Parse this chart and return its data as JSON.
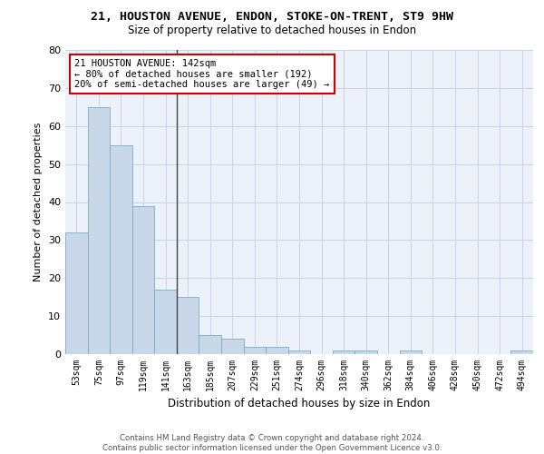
{
  "title1": "21, HOUSTON AVENUE, ENDON, STOKE-ON-TRENT, ST9 9HW",
  "title2": "Size of property relative to detached houses in Endon",
  "xlabel": "Distribution of detached houses by size in Endon",
  "ylabel": "Number of detached properties",
  "bar_labels": [
    "53sqm",
    "75sqm",
    "97sqm",
    "119sqm",
    "141sqm",
    "163sqm",
    "185sqm",
    "207sqm",
    "229sqm",
    "251sqm",
    "274sqm",
    "296sqm",
    "318sqm",
    "340sqm",
    "362sqm",
    "384sqm",
    "406sqm",
    "428sqm",
    "450sqm",
    "472sqm",
    "494sqm"
  ],
  "bar_values": [
    32,
    65,
    55,
    39,
    17,
    15,
    5,
    4,
    2,
    2,
    1,
    0,
    1,
    1,
    0,
    1,
    0,
    0,
    0,
    0,
    1
  ],
  "bar_color": "#c8d8e8",
  "bar_edge_color": "#7aaac8",
  "annotation_text": "21 HOUSTON AVENUE: 142sqm\n← 80% of detached houses are smaller (192)\n20% of semi-detached houses are larger (49) →",
  "annotation_box_color": "#ffffff",
  "annotation_edge_color": "#cc0000",
  "vline_color": "#444444",
  "grid_color": "#c8d4e8",
  "background_color": "#edf1f9",
  "ylim": [
    0,
    80
  ],
  "yticks": [
    0,
    10,
    20,
    30,
    40,
    50,
    60,
    70,
    80
  ],
  "footer_line1": "Contains HM Land Registry data © Crown copyright and database right 2024.",
  "footer_line2": "Contains public sector information licensed under the Open Government Licence v3.0."
}
